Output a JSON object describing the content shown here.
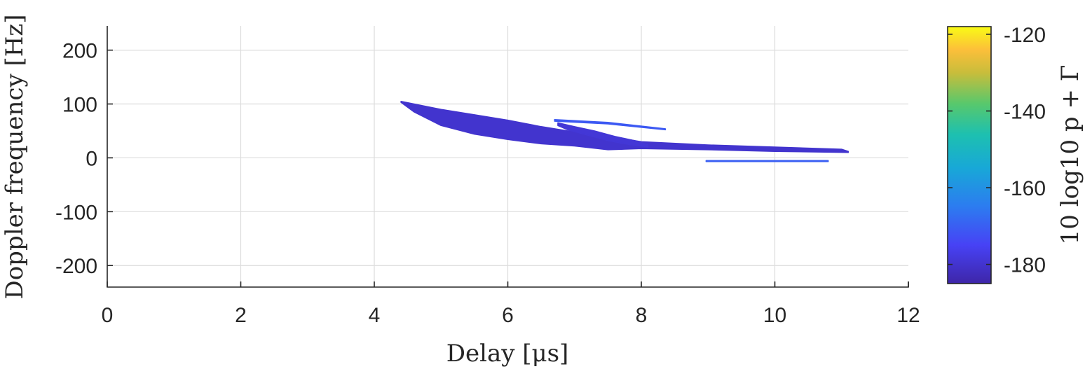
{
  "chart_data": {
    "type": "heatmap",
    "xlabel": "Delay [μs]",
    "ylabel": "Doppler frequency [Hz]",
    "xlim": [
      0,
      12
    ],
    "ylim": [
      -240,
      245
    ],
    "xticks": [
      "0",
      "2",
      "4",
      "6",
      "8",
      "10",
      "12"
    ],
    "yticks": [
      "200",
      "100",
      "0",
      "-100",
      "-200"
    ],
    "grid": true,
    "colorbar": {
      "label": "10 log10 p + Γ",
      "range": [
        -185,
        -118
      ],
      "ticks": [
        "-120",
        "-140",
        "-160",
        "-180"
      ],
      "colormap": "parula"
    },
    "features": [
      {
        "name": "main-trace",
        "upper": [
          [
            4.4,
            105
          ],
          [
            5.0,
            90
          ],
          [
            5.5,
            80
          ],
          [
            6.0,
            70
          ],
          [
            6.5,
            58
          ],
          [
            7.0,
            48
          ],
          [
            7.5,
            40
          ],
          [
            8.0,
            30
          ],
          [
            9.0,
            24
          ],
          [
            10.0,
            20
          ],
          [
            11.0,
            16
          ],
          [
            11.1,
            12
          ]
        ],
        "lower": [
          [
            11.1,
            10
          ],
          [
            10.0,
            12
          ],
          [
            9.0,
            15
          ],
          [
            8.0,
            17
          ],
          [
            7.5,
            15
          ],
          [
            7.0,
            22
          ],
          [
            6.5,
            26
          ],
          [
            6.0,
            34
          ],
          [
            5.5,
            44
          ],
          [
            5.0,
            60
          ],
          [
            4.6,
            85
          ],
          [
            4.4,
            103
          ]
        ],
        "level": -180
      },
      {
        "name": "secondary-trace",
        "upper": [
          [
            6.75,
            65
          ],
          [
            7.0,
            58
          ],
          [
            7.3,
            50
          ],
          [
            7.6,
            40
          ],
          [
            7.9,
            32
          ],
          [
            8.1,
            24
          ]
        ],
        "lower": [
          [
            8.1,
            20
          ],
          [
            7.8,
            25
          ],
          [
            7.5,
            32
          ],
          [
            7.2,
            42
          ],
          [
            6.9,
            52
          ],
          [
            6.75,
            60
          ]
        ],
        "level": -179
      },
      {
        "name": "upper-streak",
        "upper": [
          [
            6.7,
            71
          ],
          [
            7.5,
            66
          ],
          [
            8.36,
            54
          ]
        ],
        "lower": [
          [
            8.36,
            52
          ],
          [
            7.5,
            63
          ],
          [
            6.7,
            68
          ]
        ],
        "level": -171
      },
      {
        "name": "lower-streak",
        "upper": [
          [
            8.97,
            -5
          ],
          [
            10.8,
            -5
          ]
        ],
        "lower": [
          [
            10.8,
            -7
          ],
          [
            8.97,
            -7
          ]
        ],
        "level": -170
      }
    ]
  }
}
